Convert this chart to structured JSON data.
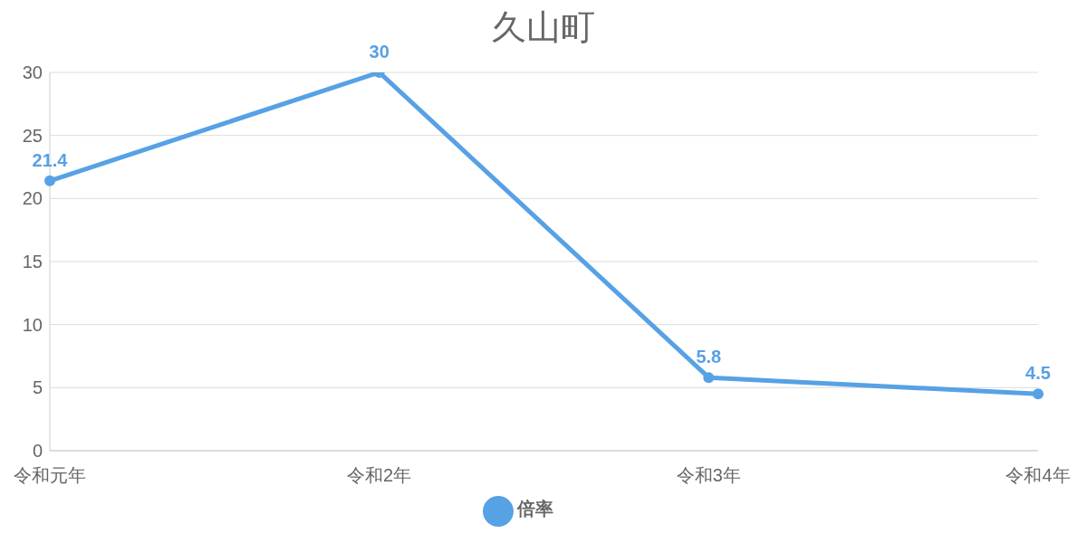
{
  "chart_data": {
    "type": "line",
    "title": "久山町",
    "categories": [
      "令和元年",
      "令和2年",
      "令和3年",
      "令和4年"
    ],
    "series": [
      {
        "name": "倍率",
        "color": "#57a1e5",
        "values": [
          21.4,
          30,
          5.8,
          4.5
        ]
      }
    ],
    "ylim": [
      0,
      30
    ],
    "yticks": [
      0,
      5,
      10,
      15,
      20,
      25,
      30
    ],
    "grid": "y",
    "legend": "bottom",
    "marker": "circle",
    "line_style": "solid",
    "data_labels": true
  }
}
